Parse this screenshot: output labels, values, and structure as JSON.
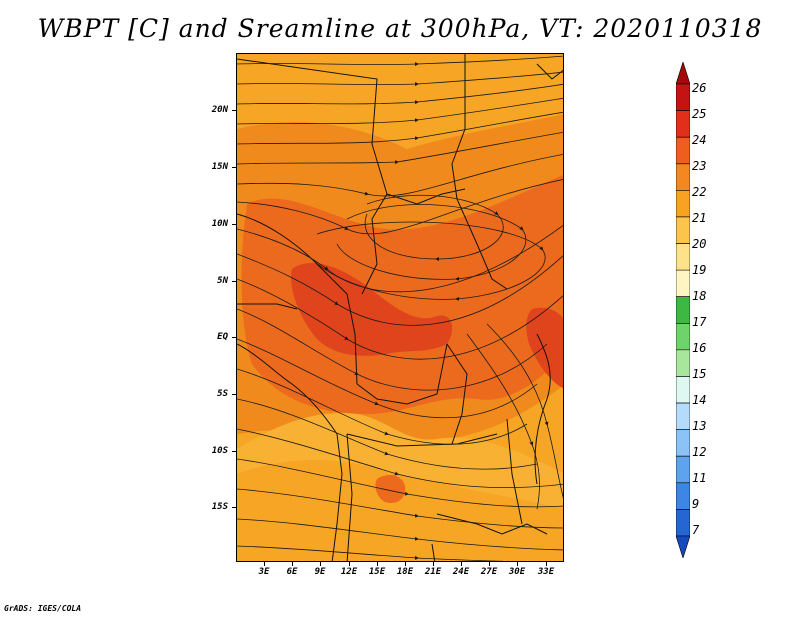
{
  "title": "WBPT [C] and Sreamline at 300hPa, VT: 2020110318",
  "credit": "GrADS: IGES/COLA",
  "map": {
    "y_labels": [
      "20N",
      "15N",
      "10N",
      "5N",
      "EQ",
      "5S",
      "10S",
      "15S"
    ],
    "x_labels": [
      "3E",
      "6E",
      "9E",
      "12E",
      "15E",
      "18E",
      "21E",
      "24E",
      "27E",
      "30E",
      "33E"
    ],
    "field_colors": {
      "level_20_21": "#f9b133",
      "level_21_22": "#f6a524",
      "level_22_23": "#f08a1c",
      "level_23_24": "#ec6a1d",
      "level_24_25": "#e0441c",
      "streamline": "#1a1a1a",
      "boundary": "#111111"
    }
  },
  "colorbar": {
    "labels": [
      "26",
      "25",
      "24",
      "23",
      "22",
      "21",
      "20",
      "19",
      "18",
      "17",
      "16",
      "15",
      "14",
      "13",
      "12",
      "11",
      "9",
      "7"
    ],
    "colors": [
      "#a50a0a",
      "#c41313",
      "#e0301b",
      "#ee5e1d",
      "#f4871f",
      "#f7a223",
      "#fbc44a",
      "#fde28a",
      "#fff5c2",
      "#3cb843",
      "#6fd36b",
      "#a7e69c",
      "#dff7f1",
      "#b4dbfa",
      "#8cc2f6",
      "#5fa3ee",
      "#3d86e6",
      "#2566d4",
      "#1648c0"
    ]
  }
}
